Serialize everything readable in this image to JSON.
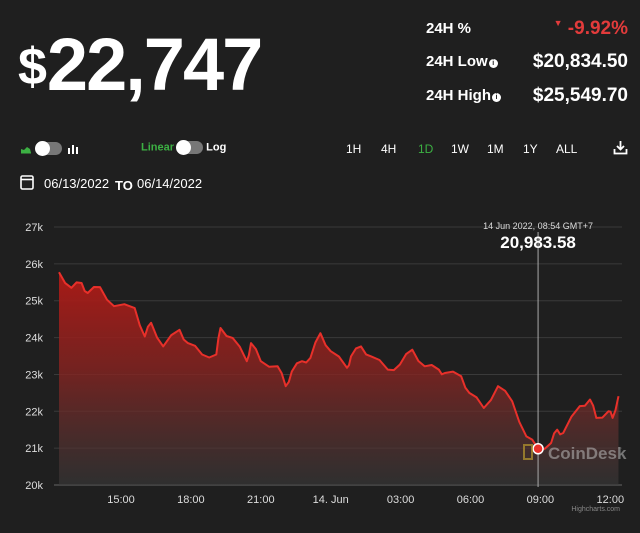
{
  "header": {
    "currency": "$",
    "price": "22,747"
  },
  "stats": [
    {
      "label": "24H %",
      "value": "-9.92%",
      "trend": "down",
      "color": "#e23b3b"
    },
    {
      "label": "24H Low",
      "value": "$20,834.50",
      "info": true
    },
    {
      "label": "24H High",
      "value": "$25,549.70",
      "info": true
    }
  ],
  "controls": {
    "chart_type_icons": [
      "area-chart-icon",
      "bar-chart-icon"
    ],
    "scale_linear": "Linear",
    "scale_log": "Log",
    "ranges": [
      "1H",
      "4H",
      "1D",
      "1W",
      "1M",
      "1Y",
      "ALL"
    ],
    "active_range": "1D",
    "download_icon": "download-icon"
  },
  "dates": {
    "from": "06/13/2022",
    "to_label": "TO",
    "to": "06/14/2022"
  },
  "accent": "#3cb043",
  "chart_data": {
    "type": "area",
    "title": "",
    "xlabel": "",
    "ylabel": "",
    "x_unit": "hours since 13 Jun 2022 00:00 (GMT+7)",
    "ylim": [
      20000,
      27000
    ],
    "yticks": [
      20000,
      21000,
      22000,
      23000,
      24000,
      25000,
      26000,
      27000
    ],
    "ytick_labels": [
      "20k",
      "21k",
      "22k",
      "23k",
      "24k",
      "25k",
      "26k",
      "27k"
    ],
    "xticks": [
      15,
      18,
      21,
      24,
      27,
      30,
      33,
      36
    ],
    "xtick_labels": [
      "15:00",
      "18:00",
      "21:00",
      "14. Jun",
      "03:00",
      "06:00",
      "09:00",
      "12:00"
    ],
    "grid": true,
    "series_color": "#e8302a",
    "x": [
      12.34,
      12.87,
      13.31,
      13.57,
      14.1,
      14.7,
      15.59,
      16.02,
      16.29,
      16.81,
      17.51,
      17.87,
      18.48,
      19.09,
      19.27,
      19.79,
      20.4,
      20.58,
      21.0,
      21.72,
      22.07,
      22.33,
      22.77,
      23.13,
      23.56,
      24.0,
      24.7,
      24.87,
      25.3,
      25.74,
      26.45,
      26.97,
      27.5,
      28.03,
      28.64,
      28.9,
      29.6,
      29.95,
      30.57,
      31.18,
      31.79,
      32.4,
      32.9,
      33.46,
      33.72,
      33.98,
      34.69,
      35.13,
      35.4,
      35.92,
      36.1,
      36.35
    ],
    "y": [
      25770,
      25350,
      25480,
      25210,
      25370,
      24850,
      24800,
      24030,
      24400,
      23760,
      24210,
      23850,
      23540,
      23540,
      24260,
      23990,
      23360,
      23850,
      23360,
      23220,
      22680,
      23080,
      23360,
      23450,
      24120,
      23630,
      23180,
      23490,
      23760,
      23490,
      23130,
      23270,
      23670,
      23220,
      23130,
      23040,
      22950,
      22500,
      22090,
      22680,
      22270,
      21320,
      20984,
      21140,
      21500,
      21410,
      22140,
      22320,
      21820,
      22000,
      21820,
      22410
    ],
    "tooltip": {
      "x": 32.9,
      "time": "14 Jun 2022, 08:54 GMT+7",
      "value": "20,983.58"
    },
    "watermark": "CoinDesk",
    "credit": "Highcharts.com"
  }
}
